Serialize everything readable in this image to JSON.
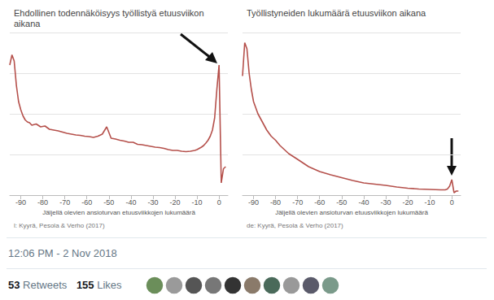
{
  "chart_data": [
    {
      "type": "line",
      "title": "Ehdollinen todennäköisyys työllistyä etuusviikon aikana",
      "x_label": "Jäljellä olevien ansioturvan etuusviikkojen lukumäärä",
      "source": "l: Kyyrä, Pesola & Verho (2017)",
      "color": "#b5504b",
      "marker": "none",
      "line_style": "solid",
      "x": [
        -95,
        -94,
        -93,
        -92,
        -91,
        -90,
        -89,
        -88,
        -87,
        -86,
        -85,
        -83,
        -81,
        -79,
        -77,
        -75,
        -73,
        -71,
        -69,
        -67,
        -65,
        -63,
        -61,
        -59,
        -57,
        -55,
        -53,
        -51,
        -49,
        -47,
        -45,
        -43,
        -41,
        -39,
        -37,
        -35,
        -33,
        -31,
        -29,
        -27,
        -25,
        -23,
        -21,
        -19,
        -17,
        -15,
        -13,
        -11,
        -10,
        -9,
        -8,
        -7,
        -6,
        -5,
        -4,
        -3,
        -2,
        -1,
        0,
        1,
        2,
        3
      ],
      "values": [
        3.2,
        3.45,
        3.3,
        2.7,
        2.3,
        2.1,
        1.95,
        1.85,
        1.8,
        1.78,
        1.72,
        1.75,
        1.68,
        1.7,
        1.62,
        1.6,
        1.58,
        1.55,
        1.52,
        1.5,
        1.48,
        1.47,
        1.45,
        1.44,
        1.42,
        1.45,
        1.5,
        1.68,
        1.4,
        1.38,
        1.35,
        1.33,
        1.3,
        1.3,
        1.25,
        1.24,
        1.22,
        1.2,
        1.18,
        1.17,
        1.15,
        1.12,
        1.1,
        1.1,
        1.08,
        1.07,
        1.08,
        1.1,
        1.12,
        1.15,
        1.18,
        1.22,
        1.28,
        1.35,
        1.45,
        1.6,
        1.9,
        2.6,
        3.2,
        0.3,
        0.65,
        0.7
      ],
      "xlim": [
        -95,
        4
      ],
      "xticks": [
        -90,
        -80,
        -70,
        -60,
        -50,
        -40,
        -30,
        -20,
        -10,
        0
      ],
      "ylim": [
        0,
        4
      ],
      "yticks": [
        0,
        1,
        2,
        3,
        4
      ],
      "grid": true,
      "tick_labels": "x"
    },
    {
      "type": "line",
      "title": "Työllistyneiden lukumäärä etuusviikon aikana",
      "x_label": "Jäljellä olevien ansioturvan etuusviikkojen lukumäärä",
      "source": "de: Kyyrä, Pesola & Verho (2017)",
      "color": "#b5504b",
      "marker": "none",
      "line_style": "solid",
      "x": [
        -95,
        -94,
        -93,
        -92,
        -91,
        -90,
        -88,
        -86,
        -84,
        -82,
        -80,
        -78,
        -76,
        -74,
        -72,
        -70,
        -65,
        -60,
        -55,
        -50,
        -45,
        -40,
        -35,
        -30,
        -25,
        -20,
        -15,
        -10,
        -5,
        -3,
        -2,
        -1,
        0,
        1,
        2,
        3
      ],
      "values": [
        2.93,
        3.75,
        3.6,
        3.0,
        2.6,
        2.3,
        2.0,
        1.8,
        1.6,
        1.45,
        1.35,
        1.22,
        1.12,
        1.02,
        0.95,
        0.88,
        0.7,
        0.58,
        0.5,
        0.43,
        0.36,
        0.3,
        0.27,
        0.24,
        0.2,
        0.17,
        0.15,
        0.14,
        0.13,
        0.13,
        0.15,
        0.22,
        0.38,
        0.06,
        0.1,
        0.1
      ],
      "xlim": [
        -95,
        4
      ],
      "xticks": [
        -90,
        -80,
        -70,
        -60,
        -50,
        -40,
        -30,
        -20,
        -10,
        0
      ],
      "ylim": [
        0,
        4
      ],
      "yticks": [
        0,
        1,
        2,
        3,
        4
      ],
      "grid": true,
      "tick_labels": "x"
    }
  ],
  "tweet": {
    "time": "12:06 PM - 2 Nov 2018",
    "retweets": 53,
    "retweets_label": "Retweets",
    "likes": 155,
    "likes_label": "Likes"
  }
}
